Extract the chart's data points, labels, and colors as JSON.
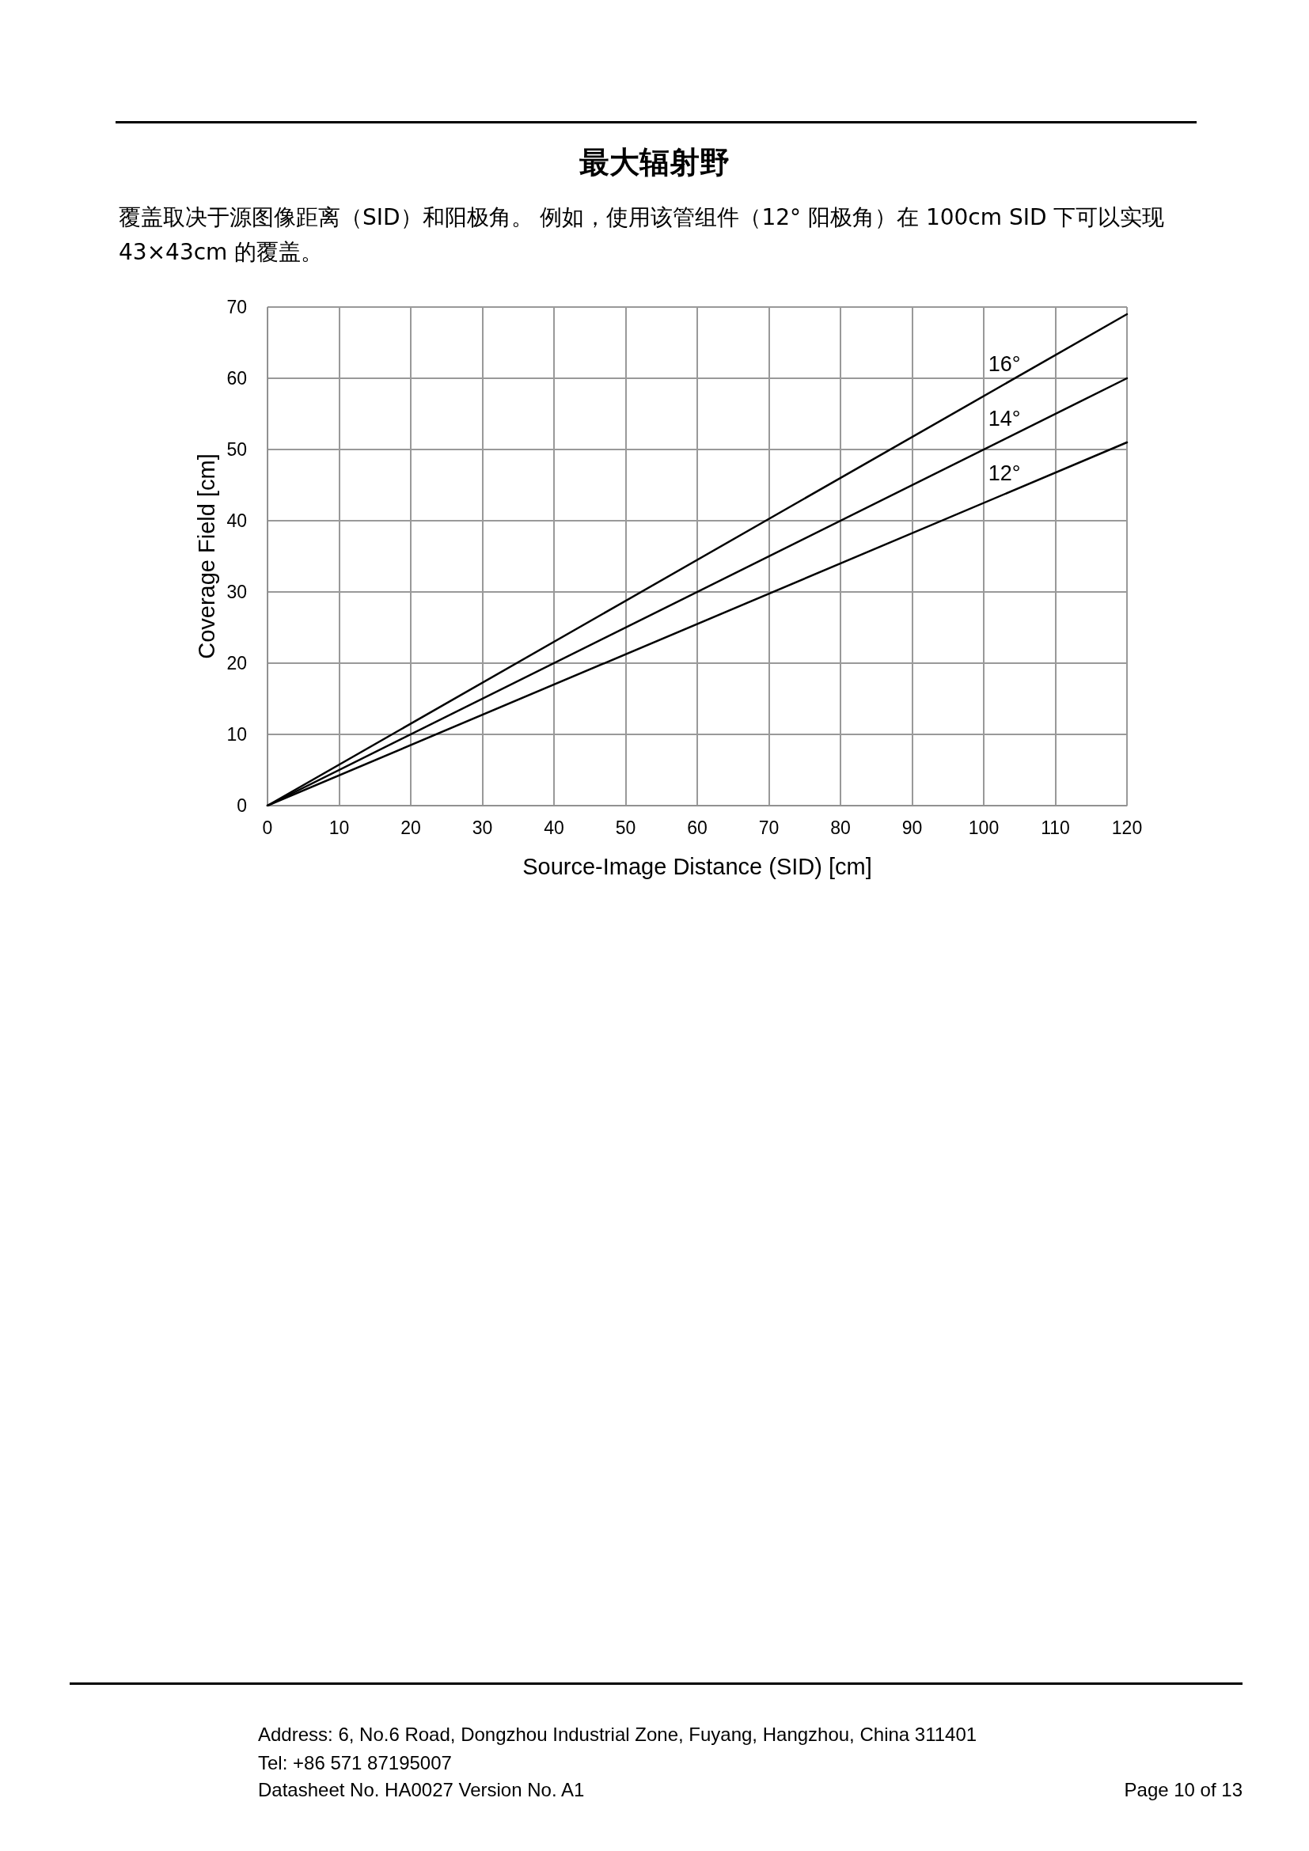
{
  "chart_data": {
    "type": "line",
    "title": "最大辐射野",
    "subtitle": "覆盖取决于源图像距离（SID）和阳极角。 例如，使用该管组件（12° 阳极角）在 100cm SID 下可以实现 43×43cm 的覆盖。",
    "xlabel": "Source-Image Distance (SID) [cm]",
    "ylabel": "Coverage Field [cm]",
    "x": [
      0,
      120
    ],
    "series": [
      {
        "name": "16°",
        "color": "#000000",
        "values": [
          0,
          69
        ]
      },
      {
        "name": "14°",
        "color": "#000000",
        "values": [
          0,
          60
        ]
      },
      {
        "name": "12°",
        "color": "#000000",
        "values": [
          0,
          51
        ]
      }
    ],
    "xlim": [
      0,
      120
    ],
    "xticks": [
      0,
      10,
      20,
      30,
      40,
      50,
      60,
      70,
      80,
      90,
      100,
      110,
      120
    ],
    "ylim": [
      0,
      70
    ],
    "yticks": [
      0,
      10,
      20,
      30,
      40,
      50,
      60,
      70
    ],
    "grid": true,
    "legend": false,
    "marker": "none",
    "line_style": "solid",
    "annotations": [
      "Address: 6, No.6 Road, Dongzhou Industrial Zone, Fuyang, Hangzhou, China 311401",
      "Tel: +86 571 87195007",
      "Datasheet No. HA0027 Version No. A1",
      "Page  10  of  13"
    ]
  }
}
